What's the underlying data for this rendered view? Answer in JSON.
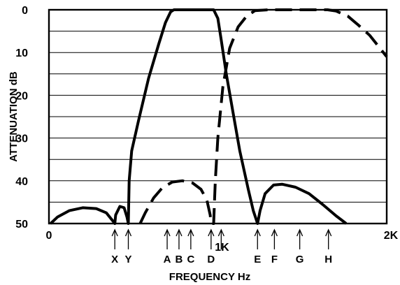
{
  "chart_data": {
    "type": "line",
    "title": "",
    "xlabel": "FREQUENCY Hz",
    "ylabel": "ATTENUATION dB",
    "xlim": [
      0,
      2000
    ],
    "ylim": [
      50,
      0
    ],
    "y_axis_inverted": true,
    "grid": "horizontal",
    "x_ticks": [
      {
        "value": 0,
        "label": "0"
      },
      {
        "value": 1000,
        "label": "1K"
      },
      {
        "value": 2000,
        "label": "2K"
      }
    ],
    "y_ticks": [
      {
        "value": 0,
        "label": "0"
      },
      {
        "value": 10,
        "label": "10"
      },
      {
        "value": 20,
        "label": "20"
      },
      {
        "value": 30,
        "label": "30"
      },
      {
        "value": 40,
        "label": "40"
      },
      {
        "value": 50,
        "label": "50"
      }
    ],
    "grid_lines_db": [
      5,
      10,
      15,
      20,
      25,
      30,
      35,
      40,
      45
    ],
    "markers": [
      {
        "label": "X",
        "x": 390
      },
      {
        "label": "Y",
        "x": 470
      },
      {
        "label": "A",
        "x": 700
      },
      {
        "label": "B",
        "x": 770
      },
      {
        "label": "C",
        "x": 840
      },
      {
        "label": "D",
        "x": 960
      },
      {
        "label": "",
        "x": 1020
      },
      {
        "label": "E",
        "x": 1235
      },
      {
        "label": "F",
        "x": 1335
      },
      {
        "label": "G",
        "x": 1485
      },
      {
        "label": "H",
        "x": 1655
      }
    ],
    "series": [
      {
        "style": "solid",
        "points": [
          [
            10,
            50
          ],
          [
            50,
            48.5
          ],
          [
            120,
            47
          ],
          [
            200,
            46.3
          ],
          [
            280,
            46.5
          ],
          [
            340,
            47.5
          ],
          [
            380,
            49.5
          ],
          [
            390,
            50
          ],
          [
            395,
            48
          ],
          [
            420,
            46
          ],
          [
            445,
            46.3
          ],
          [
            462,
            48.5
          ],
          [
            470,
            50
          ],
          [
            475,
            40
          ],
          [
            490,
            33
          ],
          [
            530,
            26
          ],
          [
            590,
            16
          ],
          [
            650,
            8
          ],
          [
            690,
            3
          ],
          [
            720,
            0.5
          ],
          [
            740,
            0
          ],
          [
            800,
            0
          ],
          [
            900,
            0
          ],
          [
            975,
            0
          ],
          [
            1000,
            2
          ],
          [
            1020,
            7
          ],
          [
            1050,
            15
          ],
          [
            1090,
            24
          ],
          [
            1130,
            33
          ],
          [
            1180,
            42
          ],
          [
            1210,
            47
          ],
          [
            1235,
            50
          ],
          [
            1250,
            47
          ],
          [
            1280,
            43
          ],
          [
            1330,
            41
          ],
          [
            1380,
            40.8
          ],
          [
            1460,
            41.5
          ],
          [
            1540,
            43
          ],
          [
            1620,
            45.5
          ],
          [
            1700,
            48.2
          ],
          [
            1760,
            50
          ]
        ]
      },
      {
        "style": "dashed",
        "points": [
          [
            540,
            50
          ],
          [
            570,
            47.5
          ],
          [
            620,
            44
          ],
          [
            670,
            41.7
          ],
          [
            730,
            40.3
          ],
          [
            790,
            40
          ],
          [
            850,
            40.5
          ],
          [
            900,
            42
          ],
          [
            935,
            44.5
          ],
          [
            955,
            48
          ],
          [
            960,
            50
          ],
          [
            975,
            50
          ],
          [
            985,
            40
          ],
          [
            1000,
            30
          ],
          [
            1030,
            18
          ],
          [
            1070,
            9
          ],
          [
            1120,
            4
          ],
          [
            1170,
            1.5
          ],
          [
            1220,
            0.2
          ],
          [
            1300,
            0
          ],
          [
            1500,
            0
          ],
          [
            1650,
            0
          ],
          [
            1700,
            0.3
          ],
          [
            1770,
            1.5
          ],
          [
            1830,
            3.5
          ],
          [
            1900,
            6
          ],
          [
            1950,
            8.5
          ],
          [
            2000,
            11
          ]
        ]
      }
    ]
  }
}
